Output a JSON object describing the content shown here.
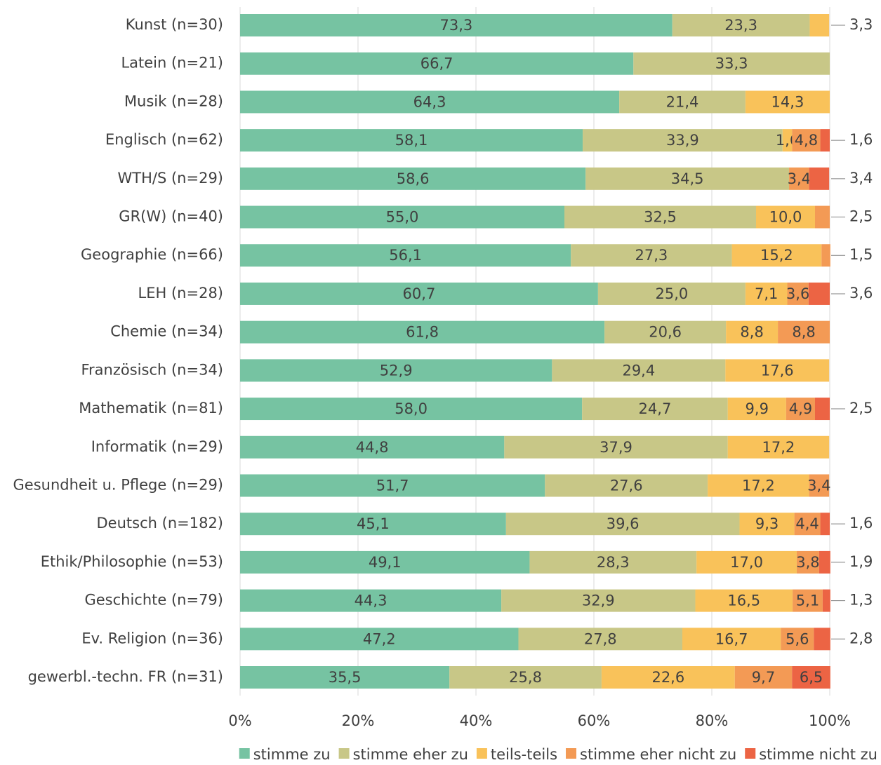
{
  "chart_data": {
    "type": "stacked_bar_horizontal",
    "categories": [
      "Kunst (n=30)",
      "Latein (n=21)",
      "Musik (n=28)",
      "Englisch (n=62)",
      "WTH/S (n=29)",
      "GR(W) (n=40)",
      "Geographie (n=66)",
      "LEH (n=28)",
      "Chemie (n=34)",
      "Französisch (n=34)",
      "Mathematik (n=81)",
      "Informatik (n=29)",
      "Gesundheit u. Pflege (n=29)",
      "Deutsch (n=182)",
      "Ethik/Philosophie (n=53)",
      "Geschichte (n=79)",
      "Ev. Religion (n=36)",
      "gewerbl.-techn. FR (n=31)"
    ],
    "series": [
      {
        "name": "stimme zu",
        "color": "#76c3a2",
        "values": [
          73.3,
          66.7,
          64.3,
          58.1,
          58.6,
          55.0,
          56.1,
          60.7,
          61.8,
          52.9,
          58.0,
          44.8,
          51.7,
          45.1,
          49.1,
          44.3,
          47.2,
          35.5
        ],
        "value_labels": [
          "73,3",
          "66,7",
          "64,3",
          "58,1",
          "58,6",
          "55,0",
          "56,1",
          "60,7",
          "61,8",
          "52,9",
          "58,0",
          "44,8",
          "51,7",
          "45,1",
          "49,1",
          "44,3",
          "47,2",
          "35,5"
        ]
      },
      {
        "name": "stimme eher zu",
        "color": "#c8c787",
        "values": [
          23.3,
          33.3,
          21.4,
          33.9,
          34.5,
          32.5,
          27.3,
          25.0,
          20.6,
          29.4,
          24.7,
          37.9,
          27.6,
          39.6,
          28.3,
          32.9,
          27.8,
          25.8
        ],
        "value_labels": [
          "23,3",
          "33,3",
          "21,4",
          "33,9",
          "34,5",
          "32,5",
          "27,3",
          "25,0",
          "20,6",
          "29,4",
          "24,7",
          "37,9",
          "27,6",
          "39,6",
          "28,3",
          "32,9",
          "27,8",
          "25,8"
        ]
      },
      {
        "name": "teils-teils",
        "color": "#f9c25a",
        "values": [
          3.3,
          null,
          14.3,
          1.6,
          null,
          10.0,
          15.2,
          7.1,
          8.8,
          17.6,
          9.9,
          17.2,
          17.2,
          9.3,
          17.0,
          16.5,
          16.7,
          22.6
        ],
        "value_labels": [
          "3,3",
          null,
          "14,3",
          "1,6",
          null,
          "10,0",
          "15,2",
          "7,1",
          "8,8",
          "17,6",
          "9,9",
          "17,2",
          "17,2",
          "9,3",
          "17,0",
          "16,5",
          "16,7",
          "22,6"
        ]
      },
      {
        "name": "stimme eher nicht zu",
        "color": "#f39a55",
        "values": [
          null,
          null,
          null,
          4.8,
          3.4,
          2.5,
          1.5,
          3.6,
          8.8,
          null,
          4.9,
          null,
          3.4,
          4.4,
          3.8,
          5.1,
          5.6,
          9.7
        ],
        "value_labels": [
          null,
          null,
          null,
          "4,8",
          "3,4",
          "2,5",
          "1,5",
          "3,6",
          "8,8",
          null,
          "4,9",
          null,
          "3,4",
          "4,4",
          "3,8",
          "5,1",
          "5,6",
          "9,7"
        ]
      },
      {
        "name": "stimme nicht zu",
        "color": "#ec6444",
        "values": [
          null,
          null,
          null,
          1.6,
          3.4,
          null,
          null,
          3.6,
          null,
          null,
          2.5,
          null,
          null,
          1.6,
          1.9,
          1.3,
          2.8,
          6.5
        ],
        "value_labels": [
          null,
          null,
          null,
          "1,6",
          "3,4",
          null,
          null,
          "3,6",
          null,
          null,
          "2,5",
          null,
          null,
          "1,6",
          "1,9",
          "1,3",
          "2,8",
          "6,5"
        ]
      }
    ],
    "xlim": [
      0,
      100
    ],
    "xticks": [
      {
        "value": 0,
        "label": "0%"
      },
      {
        "value": 20,
        "label": "20%"
      },
      {
        "value": 40,
        "label": "40%"
      },
      {
        "value": 60,
        "label": "60%"
      },
      {
        "value": 80,
        "label": "80%"
      },
      {
        "value": 100,
        "label": "100%"
      }
    ],
    "grid": true,
    "legend": "bottom"
  }
}
